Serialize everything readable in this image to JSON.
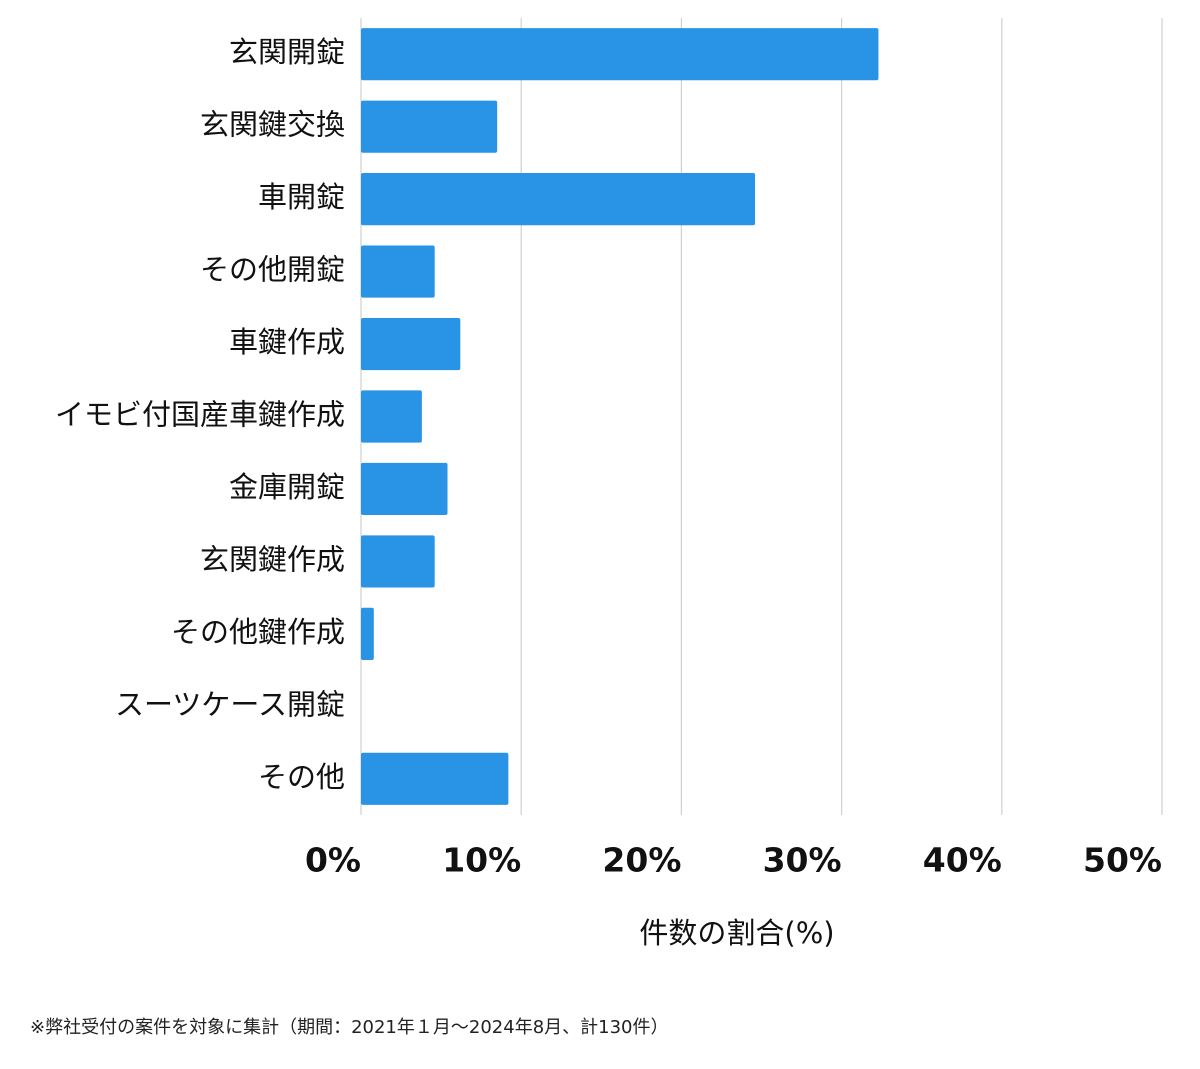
{
  "chart_data": {
    "type": "hbar",
    "categories": [
      "玄関開錠",
      "玄関鍵交換",
      "車開錠",
      "その他開錠",
      "車鍵作成",
      "イモビ付国産車鍵作成",
      "金庫開錠",
      "玄関鍵作成",
      "その他鍵作成",
      "スーツケース開錠",
      "その他"
    ],
    "values": [
      32.3,
      8.5,
      24.6,
      4.6,
      6.2,
      3.8,
      5.4,
      4.6,
      0.8,
      0,
      9.2
    ],
    "color": "#2994e6",
    "xlim": [
      0,
      50
    ],
    "xticks": [
      {
        "value": 0,
        "label": "0%"
      },
      {
        "value": 10,
        "label": "10%"
      },
      {
        "value": 20,
        "label": "20%"
      },
      {
        "value": 30,
        "label": "30%"
      },
      {
        "value": 40,
        "label": "40%"
      },
      {
        "value": 50,
        "label": "50%"
      }
    ],
    "xlabel": "件数の割合(%)",
    "grid": true
  },
  "footnote": "※弊社受付の案件を対象に集計（期間：2021年１月〜2024年8月、計130件）"
}
